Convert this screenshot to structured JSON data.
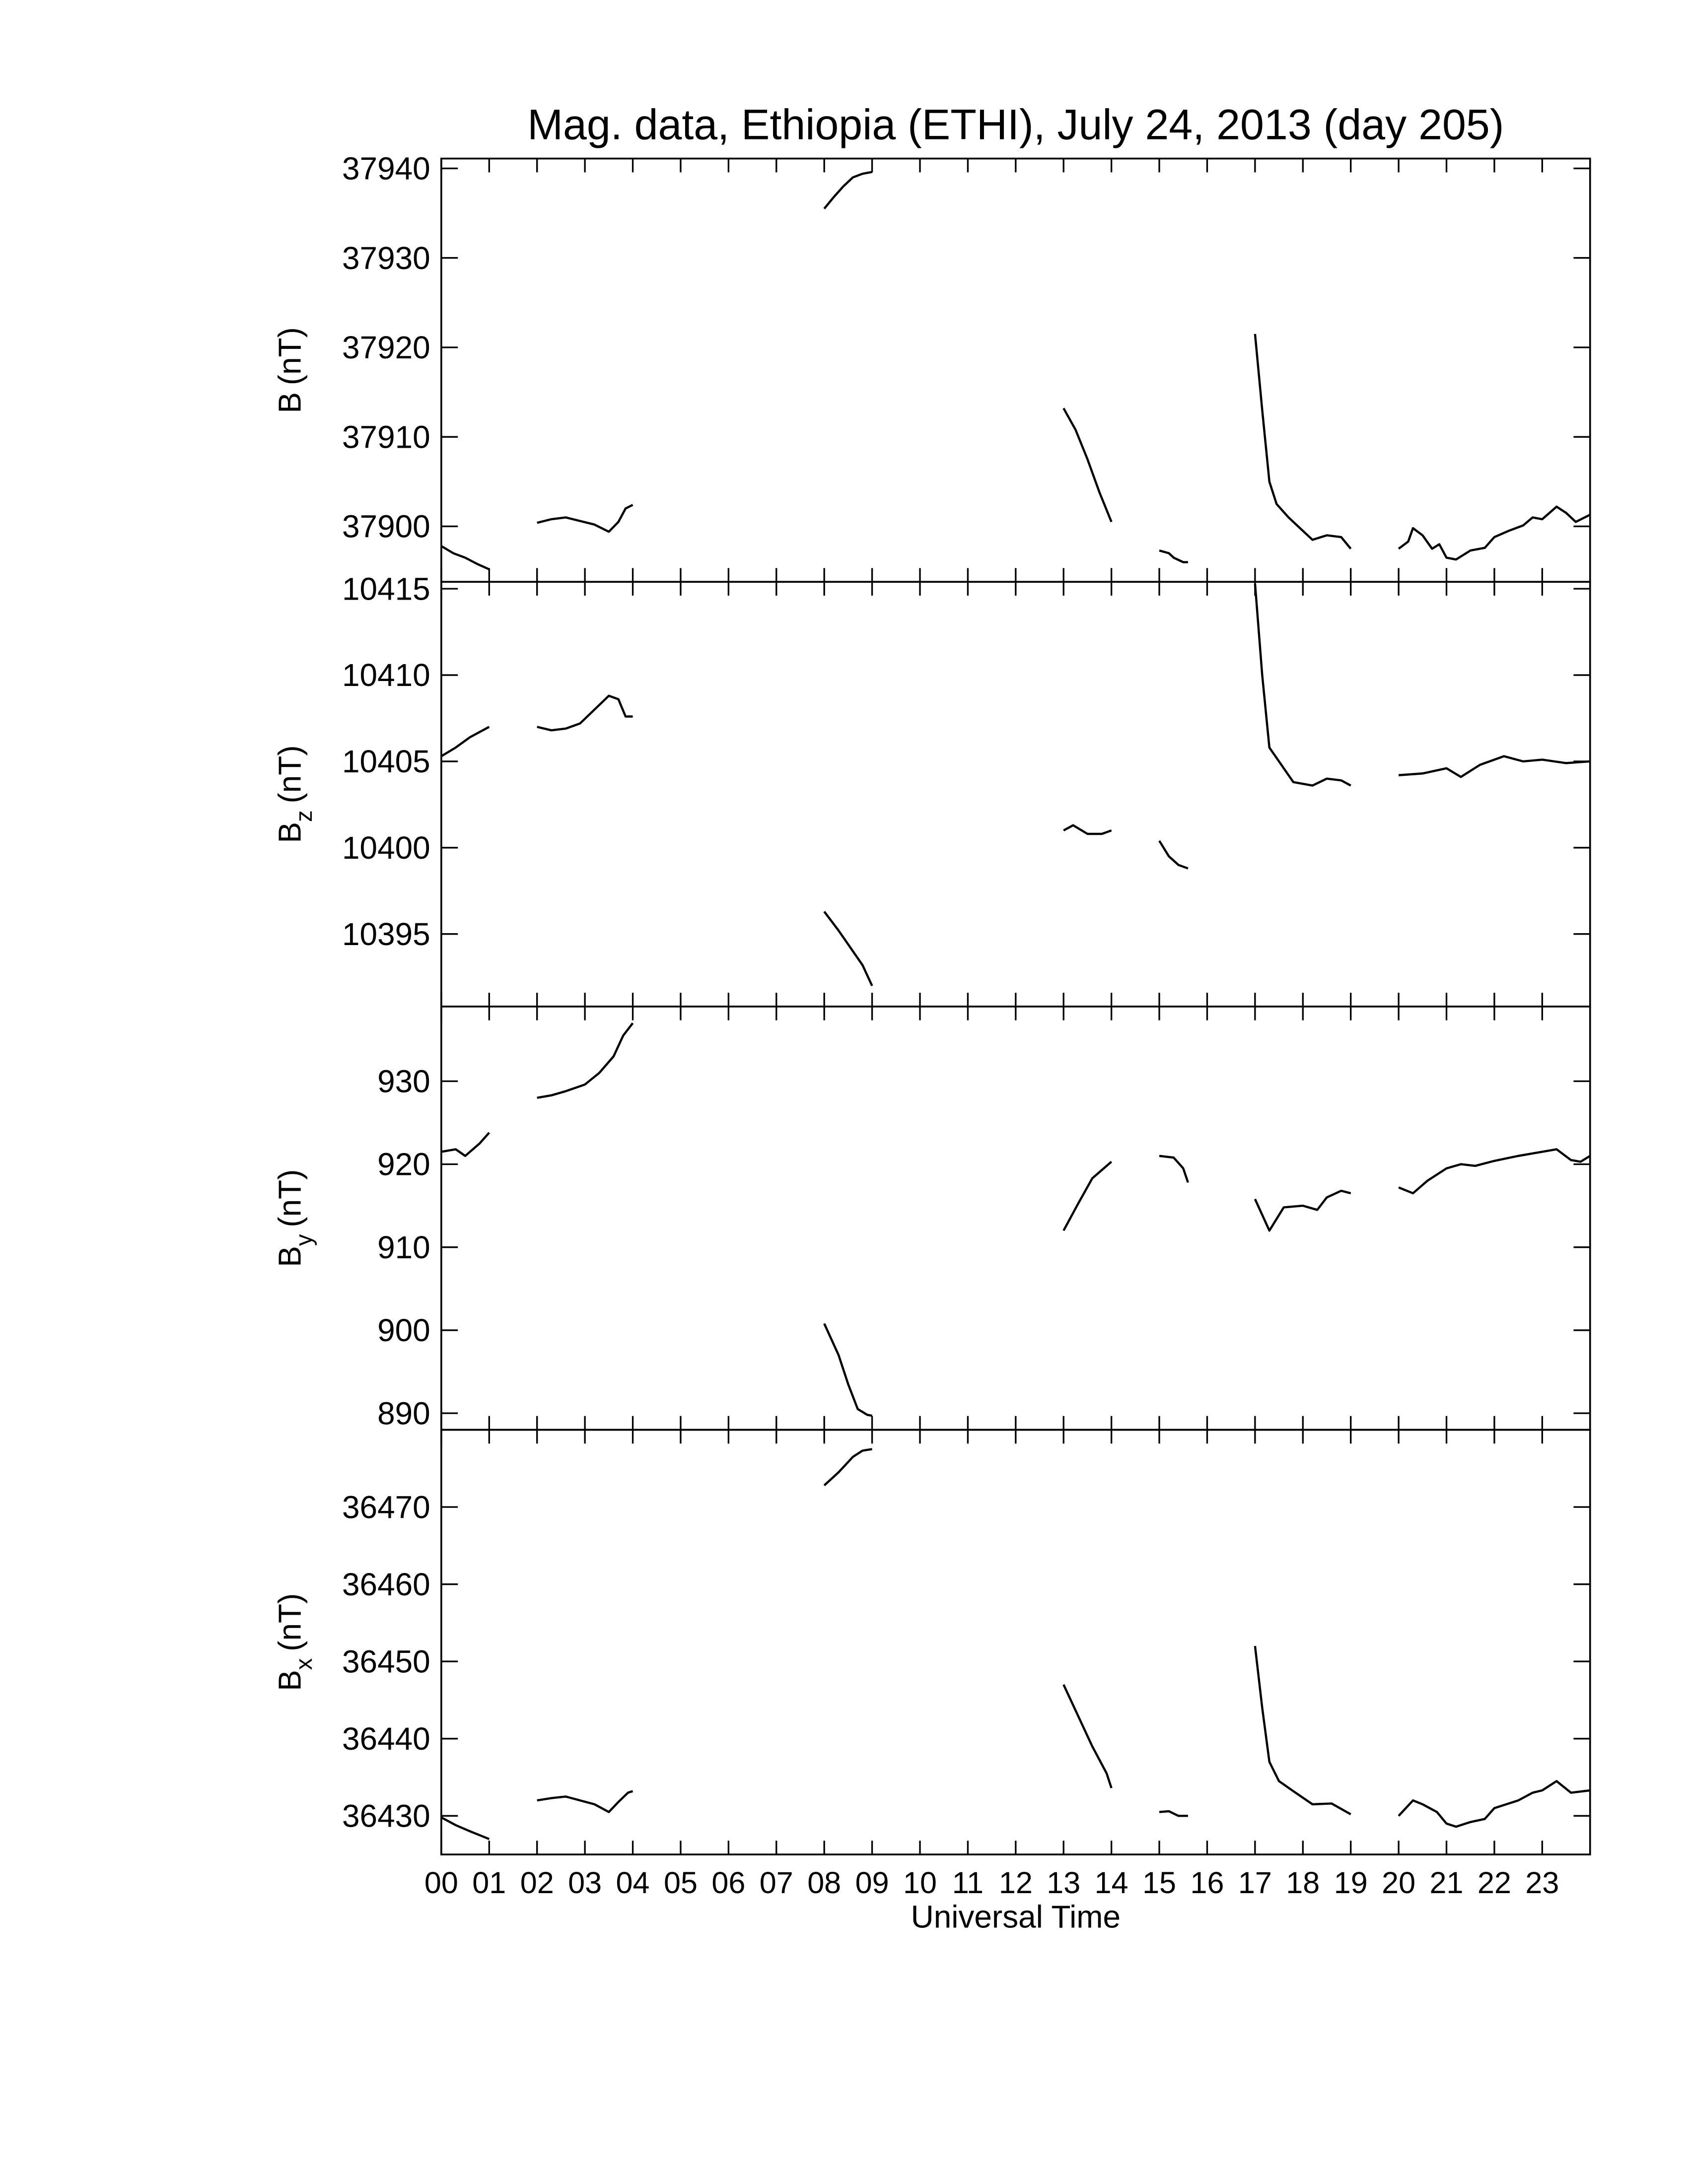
{
  "chart_data": [
    {
      "type": "line",
      "title": "Mag. data, Ethiopia (ETHI), July 24, 2013 (day 205)",
      "ylabel": {
        "symbol": "B",
        "unit": "(nT)"
      },
      "xlim": [
        0,
        24
      ],
      "xticks": [
        0,
        1,
        2,
        3,
        4,
        5,
        6,
        7,
        8,
        9,
        10,
        11,
        12,
        13,
        14,
        15,
        16,
        17,
        18,
        19,
        20,
        21,
        22,
        23
      ],
      "ylim": [
        37893.8,
        37941.1
      ],
      "yticks": [
        37900,
        37910,
        37920,
        37930,
        37940
      ],
      "x": [
        0,
        0.25,
        0.5,
        0.75,
        1.0,
        null,
        2.0,
        2.3,
        2.6,
        2.9,
        3.2,
        3.5,
        3.7,
        3.85,
        4.0,
        null,
        8.0,
        8.2,
        8.4,
        8.6,
        8.8,
        9.0,
        null,
        13.0,
        13.25,
        13.5,
        13.75,
        14.0,
        null,
        15.0,
        15.2,
        15.3,
        15.5,
        15.6,
        null,
        17.0,
        17.15,
        17.3,
        17.45,
        17.7,
        18.0,
        18.2,
        18.5,
        18.8,
        19.0,
        null,
        20.0,
        20.2,
        20.3,
        20.5,
        20.7,
        20.85,
        21.0,
        21.2,
        21.5,
        21.8,
        22.0,
        22.3,
        22.6,
        22.8,
        23.0,
        23.3,
        23.5,
        23.7,
        24.0
      ],
      "series": [
        {
          "color": "#000000",
          "values": [
            37897.8,
            37897,
            37896.5,
            37895.8,
            37895.2,
            null,
            37900.4,
            37900.8,
            37901.0,
            37900.6,
            37900.2,
            37899.4,
            37900.5,
            37902.0,
            37902.4,
            null,
            37935.5,
            37936.8,
            37938,
            37939.0,
            37939.4,
            37939.6,
            null,
            37913.2,
            37910.8,
            37907.5,
            37903.8,
            37900.5,
            null,
            37897.3,
            37897.0,
            37896.5,
            37896.0,
            37896.0,
            null,
            37921.5,
            37913,
            37905,
            37902.5,
            37901.0,
            37899.5,
            37898.5,
            37899.0,
            37898.8,
            37897.5,
            null,
            37897.5,
            37898.3,
            37899.8,
            37899.0,
            37897.5,
            37898,
            37896.5,
            37896.3,
            37897.3,
            37897.6,
            37898.8,
            37899.5,
            37900.1,
            37901,
            37900.8,
            37902.2,
            37901.5,
            37900.5,
            37901.3
          ]
        }
      ]
    },
    {
      "type": "line",
      "ylabel": {
        "symbol": "B",
        "subscript": "z",
        "unit": "(nT)"
      },
      "xlim": [
        0,
        24
      ],
      "xticks": [
        0,
        1,
        2,
        3,
        4,
        5,
        6,
        7,
        8,
        9,
        10,
        11,
        12,
        13,
        14,
        15,
        16,
        17,
        18,
        19,
        20,
        21,
        22,
        23
      ],
      "ylim": [
        10390.8,
        10415.4
      ],
      "yticks": [
        10395,
        10400,
        10405,
        10410,
        10415
      ],
      "x": [
        0,
        0.3,
        0.6,
        1.0,
        null,
        2.0,
        2.3,
        2.6,
        2.9,
        3.2,
        3.5,
        3.7,
        3.85,
        4.0,
        null,
        8.0,
        8.3,
        8.6,
        8.8,
        9.0,
        null,
        13.0,
        13.2,
        13.5,
        13.8,
        14.0,
        null,
        15.0,
        15.2,
        15.4,
        15.6,
        null,
        17.0,
        17.15,
        17.3,
        17.5,
        17.8,
        18.2,
        18.5,
        18.8,
        19.0,
        null,
        20.0,
        20.5,
        21.0,
        21.3,
        21.7,
        22.2,
        22.6,
        23.0,
        23.5,
        24.0
      ],
      "series": [
        {
          "color": "#000000",
          "values": [
            10405.3,
            10405.8,
            10406.4,
            10407.0,
            null,
            10407.0,
            10406.8,
            10406.9,
            10407.2,
            10408.0,
            10408.8,
            10408.6,
            10407.6,
            10407.6,
            null,
            10396.3,
            10395.2,
            10394.0,
            10393.2,
            10392.0,
            null,
            10401.0,
            10401.3,
            10400.8,
            10400.8,
            10401.0,
            null,
            10400.4,
            10399.5,
            10399.0,
            10398.8,
            null,
            10415.3,
            10410,
            10405.8,
            10405.0,
            10403.8,
            10403.6,
            10404.0,
            10403.9,
            10403.6,
            null,
            10404.2,
            10404.3,
            10404.6,
            10404.1,
            10404.8,
            10405.3,
            10405.0,
            10405.1,
            10404.9,
            10405.0
          ]
        }
      ]
    },
    {
      "type": "line",
      "ylabel": {
        "symbol": "B",
        "subscript": "y",
        "unit": "(nT)"
      },
      "xlim": [
        0,
        24
      ],
      "xticks": [
        0,
        1,
        2,
        3,
        4,
        5,
        6,
        7,
        8,
        9,
        10,
        11,
        12,
        13,
        14,
        15,
        16,
        17,
        18,
        19,
        20,
        21,
        22,
        23
      ],
      "ylim": [
        888.0,
        939.0
      ],
      "yticks": [
        890,
        900,
        910,
        920,
        930
      ],
      "x": [
        0,
        0.3,
        0.5,
        0.8,
        1.0,
        null,
        2.0,
        2.3,
        2.6,
        3.0,
        3.3,
        3.6,
        3.8,
        4.0,
        null,
        8.0,
        8.3,
        8.5,
        8.7,
        8.9,
        9.0,
        null,
        13.0,
        13.3,
        13.6,
        14.0,
        null,
        15.0,
        15.3,
        15.5,
        15.6,
        null,
        17.0,
        17.3,
        17.6,
        18.0,
        18.3,
        18.5,
        18.8,
        19.0,
        null,
        20.0,
        20.3,
        20.6,
        21.0,
        21.3,
        21.6,
        22.0,
        22.5,
        23.0,
        23.3,
        23.6,
        23.8,
        24.0
      ],
      "series": [
        {
          "color": "#000000",
          "values": [
            921.5,
            921.8,
            921.0,
            922.5,
            923.8,
            null,
            928.0,
            928.3,
            928.8,
            929.6,
            931.0,
            933.0,
            935.5,
            937.0,
            null,
            900.8,
            897.0,
            893.5,
            890.5,
            889.8,
            889.7,
            null,
            912.0,
            915.2,
            918.3,
            920.3,
            null,
            921.0,
            920.8,
            919.5,
            917.8,
            null,
            915.8,
            912.0,
            914.8,
            915.0,
            914.5,
            916.0,
            916.8,
            916.5,
            null,
            917.2,
            916.5,
            918.0,
            919.5,
            920.0,
            919.8,
            920.4,
            921.0,
            921.5,
            921.8,
            920.5,
            920.3,
            921.0
          ]
        }
      ]
    },
    {
      "type": "line",
      "ylabel": {
        "symbol": "B",
        "subscript": "x",
        "unit": "(nT)"
      },
      "xlabel": "Universal Time",
      "xlim": [
        0,
        24
      ],
      "xticks": [
        {
          "value": 0,
          "label": "00"
        },
        {
          "value": 1,
          "label": "01"
        },
        {
          "value": 2,
          "label": "02"
        },
        {
          "value": 3,
          "label": "03"
        },
        {
          "value": 4,
          "label": "04"
        },
        {
          "value": 5,
          "label": "05"
        },
        {
          "value": 6,
          "label": "06"
        },
        {
          "value": 7,
          "label": "07"
        },
        {
          "value": 8,
          "label": "08"
        },
        {
          "value": 9,
          "label": "09"
        },
        10,
        11,
        12,
        13,
        14,
        15,
        16,
        17,
        18,
        19,
        20,
        21,
        22,
        23
      ],
      "ylim": [
        36425,
        36480
      ],
      "yticks": [
        36430,
        36440,
        36450,
        36460,
        36470
      ],
      "x": [
        0,
        0.3,
        0.6,
        1.0,
        null,
        2.0,
        2.3,
        2.6,
        2.9,
        3.2,
        3.5,
        3.7,
        3.9,
        4.0,
        null,
        8.0,
        8.3,
        8.6,
        8.8,
        9.0,
        null,
        13.0,
        13.3,
        13.6,
        13.9,
        14.0,
        null,
        15.0,
        15.2,
        15.4,
        15.6,
        null,
        17.0,
        17.15,
        17.3,
        17.5,
        17.8,
        18.2,
        18.6,
        19.0,
        null,
        20.0,
        20.3,
        20.5,
        20.8,
        21.0,
        21.2,
        21.5,
        21.8,
        22.0,
        22.5,
        22.8,
        23.0,
        23.3,
        23.6,
        24.0
      ],
      "series": [
        {
          "color": "#000000",
          "values": [
            36429.8,
            36428.8,
            36428.0,
            36427.0,
            null,
            36432.0,
            36432.3,
            36432.5,
            36432.0,
            36431.5,
            36430.5,
            36431.8,
            36433.0,
            36433.2,
            null,
            36472.8,
            36474.5,
            36476.5,
            36477.3,
            36477.5,
            null,
            36447.0,
            36443.0,
            36439.0,
            36435.5,
            36433.6,
            null,
            36430.5,
            36430.6,
            36430.0,
            36430.0,
            null,
            36452.0,
            36444,
            36437,
            36434.5,
            36433.2,
            36431.5,
            36431.6,
            36430.2,
            null,
            36430.0,
            36432.0,
            36431.5,
            36430.5,
            36429.0,
            36428.6,
            36429.2,
            36429.6,
            36431.0,
            36432.0,
            36433.0,
            36433.3,
            36434.5,
            36433.0,
            36433.3
          ]
        }
      ]
    }
  ]
}
